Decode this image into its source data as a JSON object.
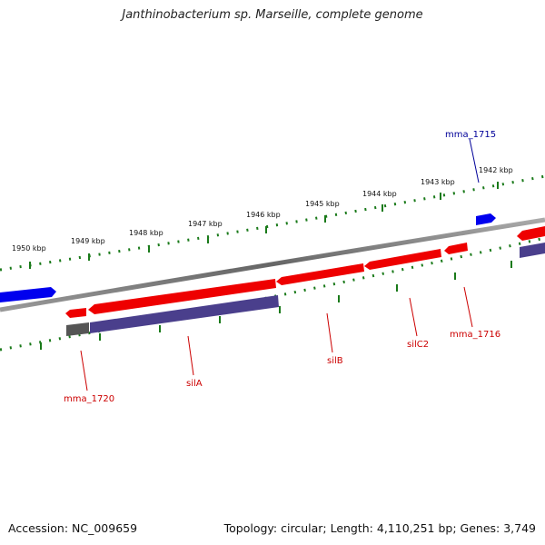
{
  "title": "Janthinobacterium sp. Marseille, complete genome",
  "footer": {
    "accession": "Accession: NC_009659",
    "summary": "Topology: circular; Length: 4,110,251 bp; Genes: 3,749"
  },
  "kbp_labels": [
    "1950 kbp",
    "1949 kbp",
    "1948 kbp",
    "1947 kbp",
    "1946 kbp",
    "1945 kbp",
    "1944 kbp",
    "1943 kbp",
    "1942 kbp"
  ],
  "gene_labels": {
    "mma_1715": "mma_1715",
    "mma_1716": "mma_1716",
    "silC2": "silC2",
    "silB": "silB",
    "silA": "silA",
    "mma_1720": "mma_1720"
  },
  "colors": {
    "forward_gene": "#0000ee",
    "reverse_gene": "#ee0000",
    "protein_bar": "#4a3f8c",
    "backbone": "#777777",
    "tick_green": "#1a7a1a",
    "forward_label": "#000099",
    "reverse_label": "#cc0000"
  }
}
